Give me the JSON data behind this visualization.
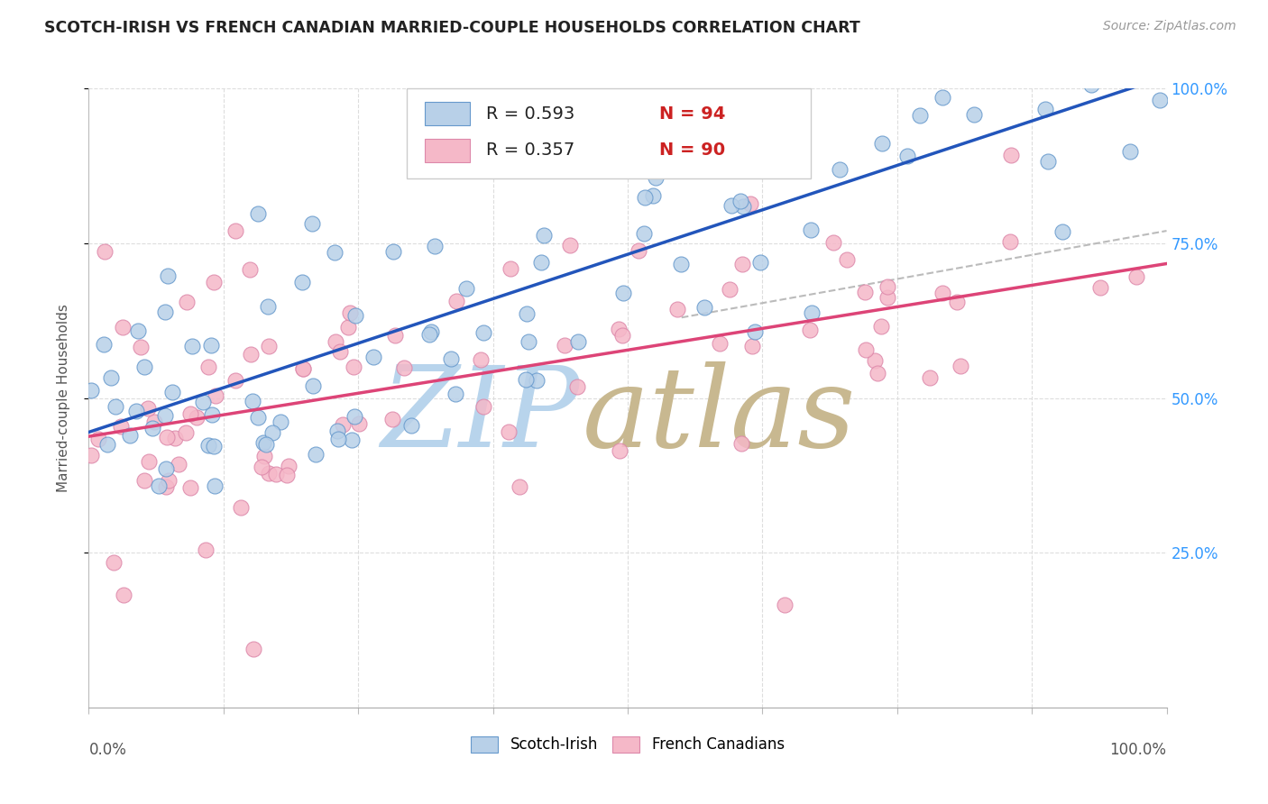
{
  "title": "SCOTCH-IRISH VS FRENCH CANADIAN MARRIED-COUPLE HOUSEHOLDS CORRELATION CHART",
  "source": "Source: ZipAtlas.com",
  "ylabel": "Married-couple Households",
  "legend_r_blue": "R = 0.593",
  "legend_n_blue": "N = 94",
  "legend_r_pink": "R = 0.357",
  "legend_n_pink": "N = 90",
  "blue_fill": "#b8d0e8",
  "blue_edge": "#6699cc",
  "pink_fill": "#f5b8c8",
  "pink_edge": "#dd88aa",
  "blue_line_color": "#2255bb",
  "pink_line_color": "#dd4477",
  "gray_dash_color": "#bbbbbb",
  "background": "#ffffff",
  "title_color": "#222222",
  "source_color": "#999999",
  "axis_label_color": "#555555",
  "right_tick_color": "#3399ff",
  "grid_color": "#dddddd",
  "legend_text_color": "#222222",
  "legend_rv_color": "#3366cc",
  "legend_n_color": "#cc2222",
  "watermark_zip_color": "#b8d4ec",
  "watermark_atlas_color": "#c8b890"
}
